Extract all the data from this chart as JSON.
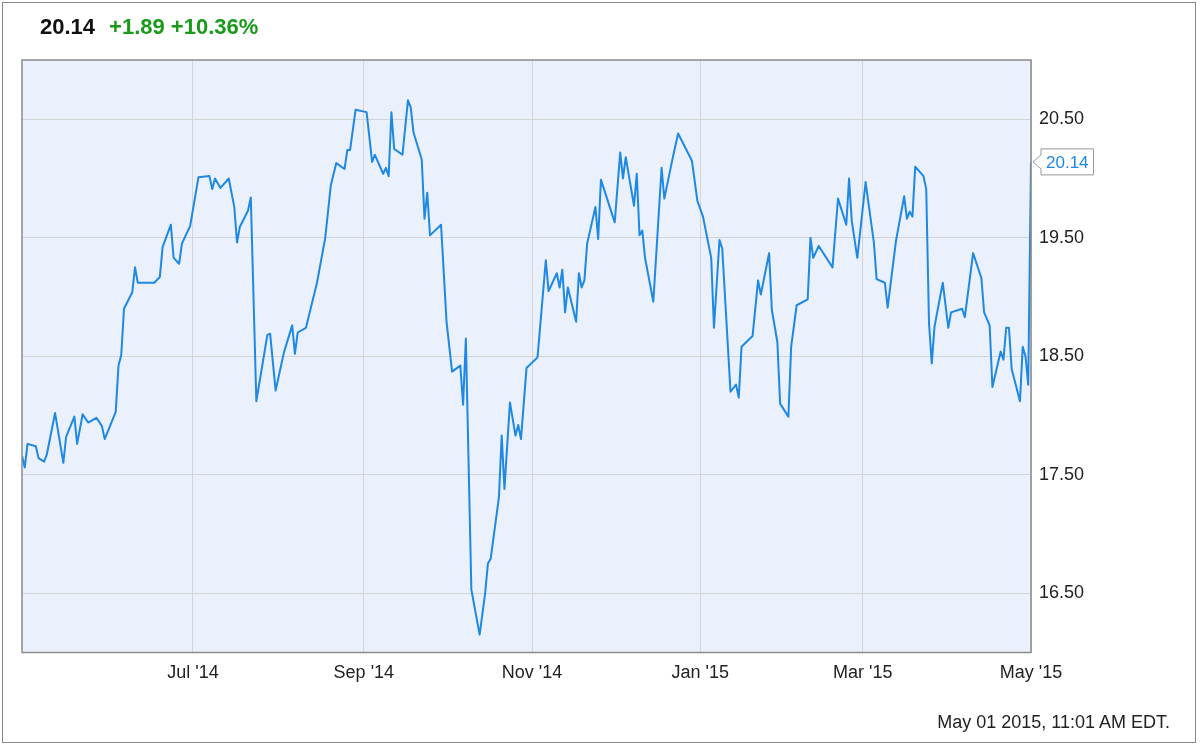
{
  "chart_data": {
    "type": "line",
    "title": "20.14",
    "subtitle": "+1.89  +10.36%",
    "xlim": [
      "2014-04-30",
      "2015-05-01"
    ],
    "xticks": [
      {
        "value": "2014-07-01",
        "label": "Jul '14"
      },
      {
        "value": "2014-09-01",
        "label": "Sep '14"
      },
      {
        "value": "2014-11-01",
        "label": "Nov '14"
      },
      {
        "value": "2015-01-01",
        "label": "Jan '15"
      },
      {
        "value": "2015-03-01",
        "label": "Mar '15"
      },
      {
        "value": "2015-05-01",
        "label": "May '15"
      }
    ],
    "ylim": [
      16,
      21
    ],
    "yticks": [
      {
        "value": 16.5,
        "label": "16.50"
      },
      {
        "value": 17.5,
        "label": "17.50"
      },
      {
        "value": 18.5,
        "label": "18.50"
      },
      {
        "value": 19.5,
        "label": "19.50"
      },
      {
        "value": 20.5,
        "label": "20.50"
      }
    ],
    "grid": true,
    "marker": "none",
    "line_style": "solid",
    "series": [
      {
        "color": "#1e88e5",
        "x": [
          "2014-04-30",
          "2014-05-01",
          "2014-05-02",
          "2014-05-05",
          "2014-05-06",
          "2014-05-08",
          "2014-05-09",
          "2014-05-12",
          "2014-05-15",
          "2014-05-16",
          "2014-05-19",
          "2014-05-20",
          "2014-05-22",
          "2014-05-24",
          "2014-05-27",
          "2014-05-29",
          "2014-05-30",
          "2014-06-03",
          "2014-06-04",
          "2014-06-05",
          "2014-06-06",
          "2014-06-09",
          "2014-06-10",
          "2014-06-11",
          "2014-06-17",
          "2014-06-19",
          "2014-06-20",
          "2014-06-23",
          "2014-06-24",
          "2014-06-26",
          "2014-06-27",
          "2014-06-30",
          "2014-07-03",
          "2014-07-07",
          "2014-07-08",
          "2014-07-09",
          "2014-07-11",
          "2014-07-14",
          "2014-07-16",
          "2014-07-17",
          "2014-07-18",
          "2014-07-21",
          "2014-07-22",
          "2014-07-24",
          "2014-07-28",
          "2014-07-29",
          "2014-07-31",
          "2014-08-03",
          "2014-08-06",
          "2014-08-07",
          "2014-08-08",
          "2014-08-11",
          "2014-08-15",
          "2014-08-18",
          "2014-08-20",
          "2014-08-22",
          "2014-08-25",
          "2014-08-26",
          "2014-08-27",
          "2014-08-29",
          "2014-09-02",
          "2014-09-04",
          "2014-09-05",
          "2014-09-08",
          "2014-09-09",
          "2014-09-10",
          "2014-09-11",
          "2014-09-12",
          "2014-09-15",
          "2014-09-17",
          "2014-09-18",
          "2014-09-19",
          "2014-09-22",
          "2014-09-23",
          "2014-09-24",
          "2014-09-25",
          "2014-09-29",
          "2014-10-01",
          "2014-10-03",
          "2014-10-06",
          "2014-10-07",
          "2014-10-08",
          "2014-10-10",
          "2014-10-13",
          "2014-10-15",
          "2014-10-16",
          "2014-10-17",
          "2014-10-20",
          "2014-10-21",
          "2014-10-22",
          "2014-10-24",
          "2014-10-26",
          "2014-10-27",
          "2014-10-28",
          "2014-10-30",
          "2014-11-03",
          "2014-11-06",
          "2014-11-07",
          "2014-11-10",
          "2014-11-11",
          "2014-11-12",
          "2014-11-13",
          "2014-11-14",
          "2014-11-17",
          "2014-11-18",
          "2014-11-19",
          "2014-11-20",
          "2014-11-21",
          "2014-11-24",
          "2014-11-25",
          "2014-11-26",
          "2014-12-01",
          "2014-12-03",
          "2014-12-04",
          "2014-12-05",
          "2014-12-08",
          "2014-12-09",
          "2014-12-10",
          "2014-12-11",
          "2014-12-12",
          "2014-12-15",
          "2014-12-18",
          "2014-12-19",
          "2014-12-22",
          "2014-12-24",
          "2014-12-29",
          "2014-12-31",
          "2015-01-02",
          "2015-01-05",
          "2015-01-06",
          "2015-01-08",
          "2015-01-09",
          "2015-01-12",
          "2015-01-14",
          "2015-01-15",
          "2015-01-16",
          "2015-01-20",
          "2015-01-22",
          "2015-01-23",
          "2015-01-26",
          "2015-01-27",
          "2015-01-29",
          "2015-01-30",
          "2015-02-02",
          "2015-02-03",
          "2015-02-05",
          "2015-02-09",
          "2015-02-10",
          "2015-02-11",
          "2015-02-13",
          "2015-02-18",
          "2015-02-20",
          "2015-02-23",
          "2015-02-24",
          "2015-02-25",
          "2015-02-27",
          "2015-03-02",
          "2015-03-05",
          "2015-03-06",
          "2015-03-09",
          "2015-03-10",
          "2015-03-13",
          "2015-03-16",
          "2015-03-17",
          "2015-03-18",
          "2015-03-19",
          "2015-03-20",
          "2015-03-23",
          "2015-03-24",
          "2015-03-25",
          "2015-03-26",
          "2015-03-27",
          "2015-03-30",
          "2015-04-01",
          "2015-04-02",
          "2015-04-06",
          "2015-04-07",
          "2015-04-10",
          "2015-04-13",
          "2015-04-14",
          "2015-04-16",
          "2015-04-17",
          "2015-04-20",
          "2015-04-21",
          "2015-04-22",
          "2015-04-23",
          "2015-04-24",
          "2015-04-27",
          "2015-04-28",
          "2015-04-29",
          "2015-04-30",
          "2015-05-01"
        ],
        "values": [
          17.66,
          17.56,
          17.76,
          17.74,
          17.64,
          17.61,
          17.67,
          18.02,
          17.6,
          17.82,
          17.99,
          17.76,
          18.01,
          17.94,
          17.98,
          17.91,
          17.8,
          18.03,
          18.42,
          18.51,
          18.9,
          19.04,
          19.25,
          19.12,
          19.12,
          19.17,
          19.42,
          19.61,
          19.33,
          19.28,
          19.45,
          19.6,
          20.01,
          20.02,
          19.91,
          20.0,
          19.92,
          20.0,
          19.76,
          19.46,
          19.59,
          19.73,
          19.84,
          18.12,
          18.68,
          18.69,
          18.21,
          18.53,
          18.76,
          18.52,
          18.7,
          18.74,
          19.12,
          19.5,
          19.94,
          20.13,
          20.08,
          20.24,
          20.24,
          20.58,
          20.56,
          20.14,
          20.2,
          20.04,
          20.09,
          20.02,
          20.56,
          20.25,
          20.2,
          20.66,
          20.6,
          20.39,
          20.16,
          19.66,
          19.88,
          19.52,
          19.61,
          18.79,
          18.37,
          18.42,
          18.09,
          18.65,
          16.53,
          16.15,
          16.5,
          16.75,
          16.79,
          17.31,
          17.83,
          17.38,
          18.11,
          17.83,
          17.92,
          17.8,
          18.4,
          18.49,
          19.31,
          19.05,
          19.2,
          19.08,
          19.23,
          18.87,
          19.08,
          18.79,
          19.2,
          19.08,
          19.14,
          19.45,
          19.76,
          19.49,
          19.99,
          19.63,
          20.22,
          20.0,
          20.18,
          19.77,
          20.04,
          19.52,
          19.56,
          19.33,
          18.96,
          20.09,
          19.83,
          20.17,
          20.38,
          20.15,
          19.81,
          19.68,
          19.33,
          18.74,
          19.48,
          19.41,
          18.2,
          18.26,
          18.15,
          18.58,
          18.67,
          19.14,
          19.02,
          19.37,
          18.89,
          18.62,
          18.1,
          17.99,
          18.58,
          18.93,
          18.98,
          19.5,
          19.33,
          19.43,
          19.25,
          19.83,
          19.61,
          20.0,
          19.64,
          19.33,
          19.97,
          19.46,
          19.15,
          19.12,
          18.91,
          19.47,
          19.85,
          19.66,
          19.72,
          19.68,
          20.1,
          20.02,
          19.91,
          18.78,
          18.44,
          18.75,
          19.12,
          18.74,
          18.87,
          18.9,
          18.83,
          19.37,
          19.16,
          18.87,
          18.76,
          18.24,
          18.54,
          18.47,
          18.74,
          18.74,
          18.39,
          18.12,
          18.58,
          18.5,
          18.26,
          20.14
        ]
      }
    ],
    "annotations": [
      {
        "text": "20.14",
        "x": "2015-05-01",
        "y": 20.14
      },
      "May 01 2015, 11:01 AM EDT."
    ]
  }
}
